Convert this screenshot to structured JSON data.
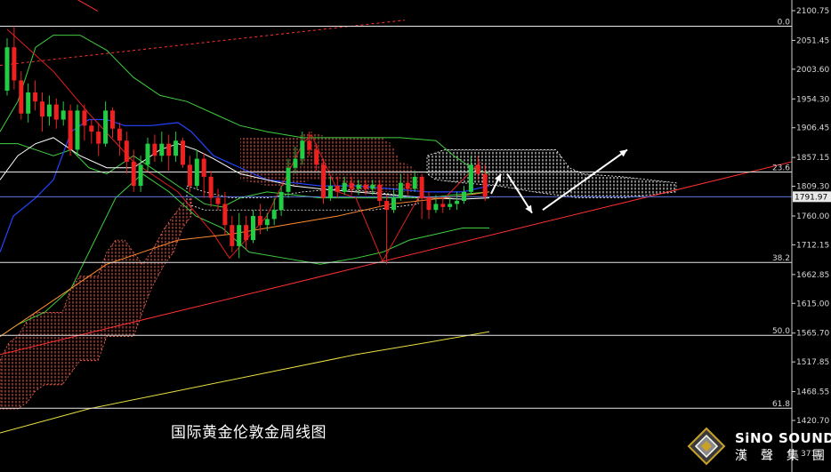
{
  "chart_data": {
    "type": "candlestick",
    "title": "国际黄金伦敦金周线图",
    "y_ticks": [
      "2100.75",
      "2051.45",
      "2003.60",
      "1954.30",
      "1906.45",
      "1857.15",
      "1809.30",
      "1760.00",
      "1712.15",
      "1662.85",
      "1615.00",
      "1565.70",
      "1517.85",
      "1468.55",
      "1420.70"
    ],
    "current_price_label": "1791.97",
    "current_price": 1791.97,
    "partial_label": "371",
    "fib_levels": [
      {
        "label": "0.0",
        "price": 2075
      },
      {
        "label": "23.6",
        "price": 1833
      },
      {
        "label": "38.2",
        "price": 1683
      },
      {
        "label": "50.0",
        "price": 1562
      },
      {
        "label": "61.8",
        "price": 1441
      }
    ],
    "ylim": [
      1420.7,
      2100.75
    ],
    "candles": [
      [
        1968,
        2040,
        1960,
        2055
      ],
      [
        2040,
        1985,
        1970,
        2075
      ],
      [
        1985,
        1930,
        1920,
        2000
      ],
      [
        1930,
        1965,
        1915,
        1980
      ],
      [
        1965,
        1950,
        1935,
        1985
      ],
      [
        1950,
        1925,
        1900,
        1965
      ],
      [
        1925,
        1945,
        1910,
        1960
      ],
      [
        1945,
        1920,
        1905,
        1955
      ],
      [
        1920,
        1935,
        1910,
        1950
      ],
      [
        1935,
        1870,
        1860,
        1945
      ],
      [
        1870,
        1935,
        1860,
        1945
      ],
      [
        1935,
        1910,
        1885,
        1945
      ],
      [
        1910,
        1900,
        1880,
        1920
      ],
      [
        1900,
        1880,
        1860,
        1915
      ],
      [
        1880,
        1935,
        1875,
        1950
      ],
      [
        1935,
        1905,
        1890,
        1940
      ],
      [
        1905,
        1885,
        1860,
        1915
      ],
      [
        1885,
        1850,
        1830,
        1900
      ],
      [
        1850,
        1810,
        1800,
        1870
      ],
      [
        1810,
        1845,
        1800,
        1860
      ],
      [
        1845,
        1880,
        1835,
        1890
      ],
      [
        1880,
        1860,
        1850,
        1895
      ],
      [
        1860,
        1880,
        1850,
        1900
      ],
      [
        1880,
        1860,
        1835,
        1895
      ],
      [
        1860,
        1885,
        1850,
        1900
      ],
      [
        1885,
        1845,
        1840,
        1890
      ],
      [
        1845,
        1810,
        1800,
        1860
      ],
      [
        1810,
        1855,
        1805,
        1870
      ],
      [
        1855,
        1825,
        1790,
        1865
      ],
      [
        1825,
        1790,
        1775,
        1835
      ],
      [
        1790,
        1780,
        1770,
        1805
      ],
      [
        1780,
        1745,
        1730,
        1800
      ],
      [
        1745,
        1710,
        1700,
        1760
      ],
      [
        1710,
        1745,
        1690,
        1765
      ],
      [
        1745,
        1720,
        1705,
        1760
      ],
      [
        1720,
        1760,
        1715,
        1770
      ],
      [
        1760,
        1745,
        1730,
        1780
      ],
      [
        1745,
        1755,
        1735,
        1765
      ],
      [
        1755,
        1770,
        1745,
        1790
      ],
      [
        1770,
        1800,
        1760,
        1810
      ],
      [
        1800,
        1840,
        1790,
        1855
      ],
      [
        1840,
        1855,
        1830,
        1875
      ],
      [
        1855,
        1885,
        1845,
        1900
      ],
      [
        1885,
        1870,
        1860,
        1900
      ],
      [
        1870,
        1845,
        1835,
        1880
      ],
      [
        1845,
        1790,
        1780,
        1855
      ],
      [
        1790,
        1810,
        1785,
        1825
      ],
      [
        1810,
        1800,
        1790,
        1825
      ],
      [
        1800,
        1815,
        1795,
        1825
      ],
      [
        1815,
        1805,
        1795,
        1825
      ],
      [
        1805,
        1812,
        1795,
        1820
      ],
      [
        1812,
        1805,
        1795,
        1820
      ],
      [
        1805,
        1812,
        1795,
        1820
      ],
      [
        1812,
        1785,
        1775,
        1820
      ],
      [
        1785,
        1770,
        1680,
        1795
      ],
      [
        1770,
        1790,
        1765,
        1805
      ],
      [
        1790,
        1815,
        1785,
        1830
      ],
      [
        1815,
        1805,
        1795,
        1830
      ],
      [
        1805,
        1825,
        1800,
        1835
      ],
      [
        1825,
        1790,
        1755,
        1830
      ],
      [
        1790,
        1770,
        1755,
        1800
      ],
      [
        1770,
        1780,
        1765,
        1795
      ],
      [
        1780,
        1775,
        1765,
        1790
      ],
      [
        1775,
        1780,
        1770,
        1790
      ],
      [
        1780,
        1785,
        1770,
        1800
      ],
      [
        1785,
        1800,
        1780,
        1810
      ],
      [
        1800,
        1845,
        1795,
        1860
      ],
      [
        1845,
        1830,
        1820,
        1860
      ],
      [
        1830,
        1792,
        1785,
        1845
      ]
    ]
  }
}
